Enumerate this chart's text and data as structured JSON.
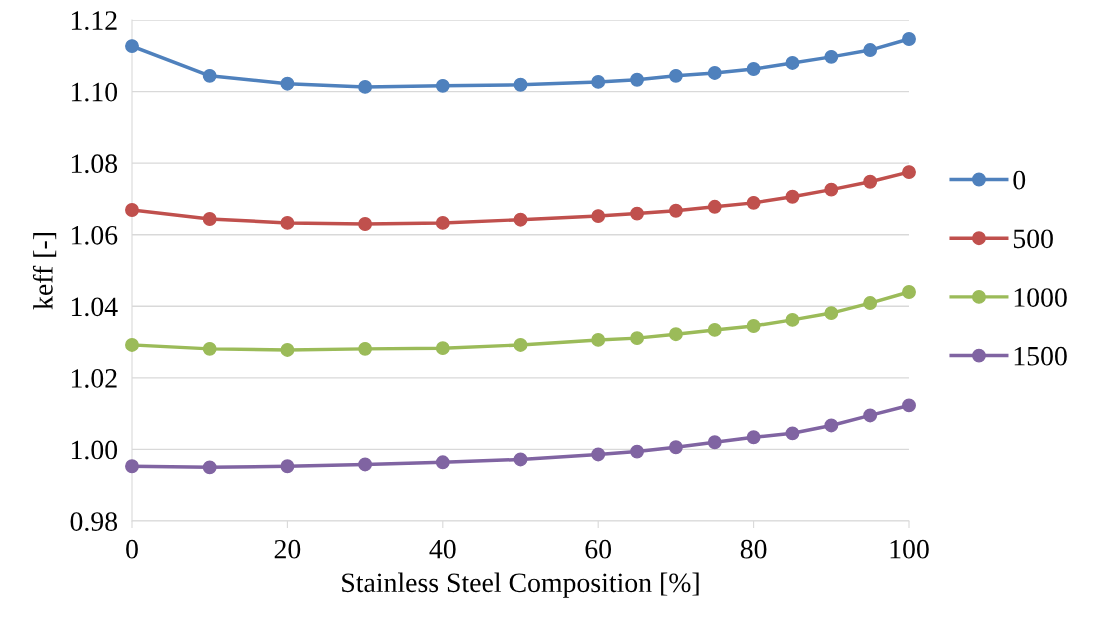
{
  "chart_data": {
    "type": "line",
    "xlabel": "Stainless Steel Composition [%]",
    "ylabel": "keff [-]",
    "x": [
      0,
      10,
      20,
      30,
      40,
      50,
      60,
      65,
      70,
      75,
      80,
      85,
      90,
      95,
      100
    ],
    "series": [
      {
        "name": "0",
        "color": "#4f81bd",
        "values": [
          1.1127,
          1.1044,
          1.1022,
          1.1013,
          1.1016,
          1.1019,
          1.1027,
          1.1033,
          1.1044,
          1.1052,
          1.1063,
          1.108,
          1.1097,
          1.1116,
          1.1147
        ]
      },
      {
        "name": "500",
        "color": "#c0504d",
        "values": [
          1.0669,
          1.0644,
          1.0633,
          1.063,
          1.0633,
          1.0642,
          1.0652,
          1.0659,
          1.0667,
          1.0678,
          1.0689,
          1.0706,
          1.0726,
          1.0748,
          1.0775
        ]
      },
      {
        "name": "1000",
        "color": "#9bbb59",
        "values": [
          1.0292,
          1.0281,
          1.0278,
          1.0281,
          1.0283,
          1.0292,
          1.0306,
          1.0311,
          1.0322,
          1.0334,
          1.0345,
          1.0362,
          1.0381,
          1.0409,
          1.044
        ]
      },
      {
        "name": "1500",
        "color": "#8064a2",
        "values": [
          0.9953,
          0.995,
          0.9953,
          0.9958,
          0.9964,
          0.9972,
          0.9986,
          0.9994,
          1.0006,
          1.002,
          1.0034,
          1.0045,
          1.0067,
          1.0095,
          1.0123
        ]
      }
    ],
    "xlim": [
      0,
      100
    ],
    "xticks": [
      0,
      20,
      40,
      60,
      80,
      100
    ],
    "ylim": [
      0.98,
      1.12
    ],
    "yticks": [
      {
        "value": 0.98,
        "label": "0.98"
      },
      {
        "value": 1.0,
        "label": "1.00"
      },
      {
        "value": 1.02,
        "label": "1.02"
      },
      {
        "value": 1.04,
        "label": "1.04"
      },
      {
        "value": 1.06,
        "label": "1.06"
      },
      {
        "value": 1.08,
        "label": "1.08"
      },
      {
        "value": 1.1,
        "label": "1.10"
      },
      {
        "value": 1.12,
        "label": "1.12"
      }
    ],
    "grid": "y",
    "legend": "right",
    "marker": "circle",
    "line_style": "solid"
  }
}
